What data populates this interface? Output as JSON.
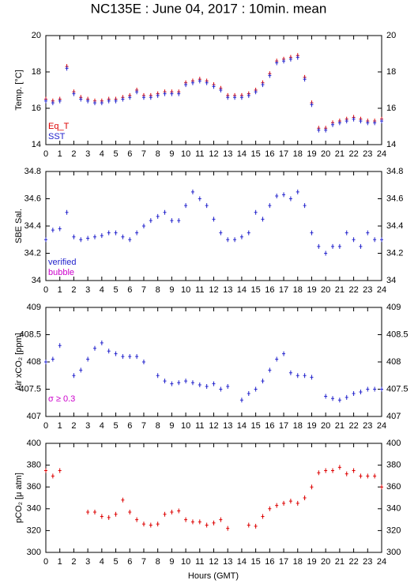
{
  "title": "NC135E : June 04, 2017 : 10min. mean",
  "xlabel": "Hours (GMT)",
  "chart_data": [
    {
      "type": "scatter",
      "ylabel": "Temp. [°C]",
      "legend": "lower left",
      "xlim": [
        0,
        24
      ],
      "xticks": [
        0,
        1,
        2,
        3,
        4,
        5,
        6,
        7,
        8,
        9,
        10,
        11,
        12,
        13,
        14,
        15,
        16,
        17,
        18,
        19,
        20,
        21,
        22,
        23,
        24
      ],
      "ylim": [
        14,
        20
      ],
      "yticks": [
        14,
        16,
        18,
        20
      ],
      "x": [
        0,
        0.5,
        1,
        1.5,
        2,
        2.5,
        3,
        3.5,
        4,
        4.5,
        5,
        5.5,
        6,
        6.5,
        7,
        7.5,
        8,
        8.5,
        9,
        9.5,
        10,
        10.5,
        11,
        11.5,
        12,
        12.5,
        13,
        13.5,
        14,
        14.5,
        15,
        15.5,
        16,
        16.5,
        17,
        17.5,
        18,
        18.5,
        19,
        19.5,
        20,
        20.5,
        21,
        21.5,
        22,
        22.5,
        23,
        23.5,
        24
      ],
      "series": [
        {
          "name": "Eq_T",
          "color": "#dd0000",
          "values": [
            16.5,
            16.4,
            16.5,
            18.3,
            16.9,
            16.6,
            16.5,
            16.4,
            16.4,
            16.5,
            16.5,
            16.6,
            16.7,
            17.0,
            16.7,
            16.7,
            16.8,
            16.9,
            16.9,
            16.9,
            17.4,
            17.5,
            17.6,
            17.5,
            17.3,
            17.1,
            16.7,
            16.7,
            16.7,
            16.8,
            17.0,
            17.4,
            17.9,
            18.6,
            18.7,
            18.8,
            18.9,
            17.7,
            16.3,
            14.9,
            14.9,
            15.2,
            15.3,
            15.4,
            15.5,
            15.4,
            15.3,
            15.3,
            15.4
          ]
        },
        {
          "name": "SST",
          "color": "#2222cc",
          "values": [
            16.4,
            16.3,
            16.4,
            18.2,
            16.8,
            16.5,
            16.4,
            16.3,
            16.3,
            16.4,
            16.4,
            16.5,
            16.6,
            16.9,
            16.6,
            16.6,
            16.7,
            16.8,
            16.8,
            16.8,
            17.3,
            17.4,
            17.5,
            17.4,
            17.2,
            17.0,
            16.6,
            16.6,
            16.6,
            16.7,
            16.9,
            17.3,
            17.8,
            18.5,
            18.6,
            18.7,
            18.8,
            17.6,
            16.2,
            14.8,
            14.8,
            15.1,
            15.2,
            15.3,
            15.4,
            15.3,
            15.2,
            15.2,
            15.3
          ]
        }
      ]
    },
    {
      "type": "scatter",
      "ylabel": "SBE Sal.",
      "legend": "lower left",
      "xlim": [
        0,
        24
      ],
      "xticks": [
        0,
        1,
        2,
        3,
        4,
        5,
        6,
        7,
        8,
        9,
        10,
        11,
        12,
        13,
        14,
        15,
        16,
        17,
        18,
        19,
        20,
        21,
        22,
        23,
        24
      ],
      "ylim": [
        34,
        34.8
      ],
      "yticks": [
        34,
        34.2,
        34.4,
        34.6,
        34.8
      ],
      "x": [
        0,
        0.5,
        1,
        1.5,
        2,
        2.5,
        3,
        3.5,
        4,
        4.5,
        5,
        5.5,
        6,
        6.5,
        7,
        7.5,
        8,
        8.5,
        9,
        9.5,
        10,
        10.5,
        11,
        11.5,
        12,
        12.5,
        13,
        13.5,
        14,
        14.5,
        15,
        15.5,
        16,
        16.5,
        17,
        17.5,
        18,
        18.5,
        19,
        19.5,
        20,
        20.5,
        21,
        21.5,
        22,
        22.5,
        23,
        23.5,
        24
      ],
      "series": [
        {
          "name": "verified",
          "color": "#2222cc",
          "values": [
            34.3,
            34.37,
            34.38,
            34.5,
            34.32,
            34.3,
            34.31,
            34.32,
            34.33,
            34.35,
            34.35,
            34.32,
            34.3,
            34.35,
            34.4,
            34.44,
            34.47,
            34.5,
            34.44,
            34.44,
            34.55,
            34.65,
            34.6,
            34.55,
            34.45,
            34.35,
            34.3,
            34.3,
            34.32,
            34.35,
            34.5,
            34.45,
            34.55,
            34.62,
            34.63,
            34.6,
            34.65,
            34.55,
            34.35,
            34.25,
            34.2,
            34.25,
            34.25,
            34.35,
            34.3,
            34.25,
            34.35,
            34.3,
            34.3
          ]
        },
        {
          "name": "bubble",
          "color": "#cc00cc",
          "values": [
            null,
            null,
            null,
            null,
            null,
            null,
            null,
            null,
            null,
            null,
            null,
            null,
            null,
            null,
            null,
            null,
            null,
            null,
            null,
            null,
            null,
            null,
            null,
            null,
            null,
            null,
            null,
            null,
            null,
            null,
            null,
            null,
            null,
            null,
            null,
            null,
            null,
            null,
            null,
            null,
            null,
            null,
            null,
            null,
            null,
            null,
            null,
            null,
            null
          ]
        }
      ]
    },
    {
      "type": "scatter",
      "ylabel": "Air xCO₂ [ppm]",
      "annotation": "σ ≥ 0.3",
      "annotation_color": "#cc00cc",
      "xlim": [
        0,
        24
      ],
      "xticks": [
        0,
        1,
        2,
        3,
        4,
        5,
        6,
        7,
        8,
        9,
        10,
        11,
        12,
        13,
        14,
        15,
        16,
        17,
        18,
        19,
        20,
        21,
        22,
        23,
        24
      ],
      "ylim": [
        407,
        409
      ],
      "yticks": [
        407,
        407.5,
        408,
        408.5,
        409
      ],
      "x": [
        0,
        0.5,
        1,
        1.5,
        2,
        2.5,
        3,
        3.5,
        4,
        4.5,
        5,
        5.5,
        6,
        6.5,
        7,
        7.5,
        8,
        8.5,
        9,
        9.5,
        10,
        10.5,
        11,
        11.5,
        12,
        12.5,
        13,
        13.5,
        14,
        14.5,
        15,
        15.5,
        16,
        16.5,
        17,
        17.5,
        18,
        18.5,
        19,
        19.5,
        20,
        20.5,
        21,
        21.5,
        22,
        22.5,
        23,
        23.5,
        24
      ],
      "series": [
        {
          "name": "xCO2",
          "color": "#2222cc",
          "values": [
            408.0,
            408.05,
            408.3,
            null,
            407.75,
            407.85,
            408.05,
            408.25,
            408.35,
            408.2,
            408.15,
            408.1,
            408.1,
            408.1,
            408.0,
            null,
            407.75,
            407.65,
            407.6,
            407.62,
            407.65,
            407.62,
            407.58,
            407.55,
            407.6,
            407.5,
            407.55,
            null,
            407.3,
            407.42,
            407.5,
            407.65,
            407.85,
            408.05,
            408.15,
            407.8,
            407.75,
            407.75,
            407.72,
            null,
            407.37,
            407.33,
            407.3,
            407.35,
            407.42,
            407.45,
            407.5,
            407.5,
            407.5
          ]
        }
      ]
    },
    {
      "type": "scatter",
      "ylabel": "pCO₂ [μ atm]",
      "xlim": [
        0,
        24
      ],
      "xticks": [
        0,
        1,
        2,
        3,
        4,
        5,
        6,
        7,
        8,
        9,
        10,
        11,
        12,
        13,
        14,
        15,
        16,
        17,
        18,
        19,
        20,
        21,
        22,
        23,
        24
      ],
      "ylim": [
        300,
        400
      ],
      "yticks": [
        300,
        320,
        340,
        360,
        380,
        400
      ],
      "x": [
        0,
        0.5,
        1,
        1.5,
        2,
        2.5,
        3,
        3.5,
        4,
        4.5,
        5,
        5.5,
        6,
        6.5,
        7,
        7.5,
        8,
        8.5,
        9,
        9.5,
        10,
        10.5,
        11,
        11.5,
        12,
        12.5,
        13,
        13.5,
        14,
        14.5,
        15,
        15.5,
        16,
        16.5,
        17,
        17.5,
        18,
        18.5,
        19,
        19.5,
        20,
        20.5,
        21,
        21.5,
        22,
        22.5,
        23,
        23.5,
        24
      ],
      "series": [
        {
          "name": "pCO2",
          "color": "#dd0000",
          "values": [
            375,
            370,
            375,
            null,
            null,
            null,
            337,
            337,
            333,
            332,
            335,
            348,
            337,
            330,
            326,
            325,
            326,
            335,
            337,
            338,
            330,
            328,
            328,
            325,
            327,
            330,
            322,
            null,
            null,
            325,
            324,
            333,
            340,
            343,
            345,
            347,
            345,
            350,
            360,
            373,
            375,
            375,
            378,
            372,
            375,
            370,
            370,
            370,
            360
          ]
        }
      ]
    }
  ]
}
